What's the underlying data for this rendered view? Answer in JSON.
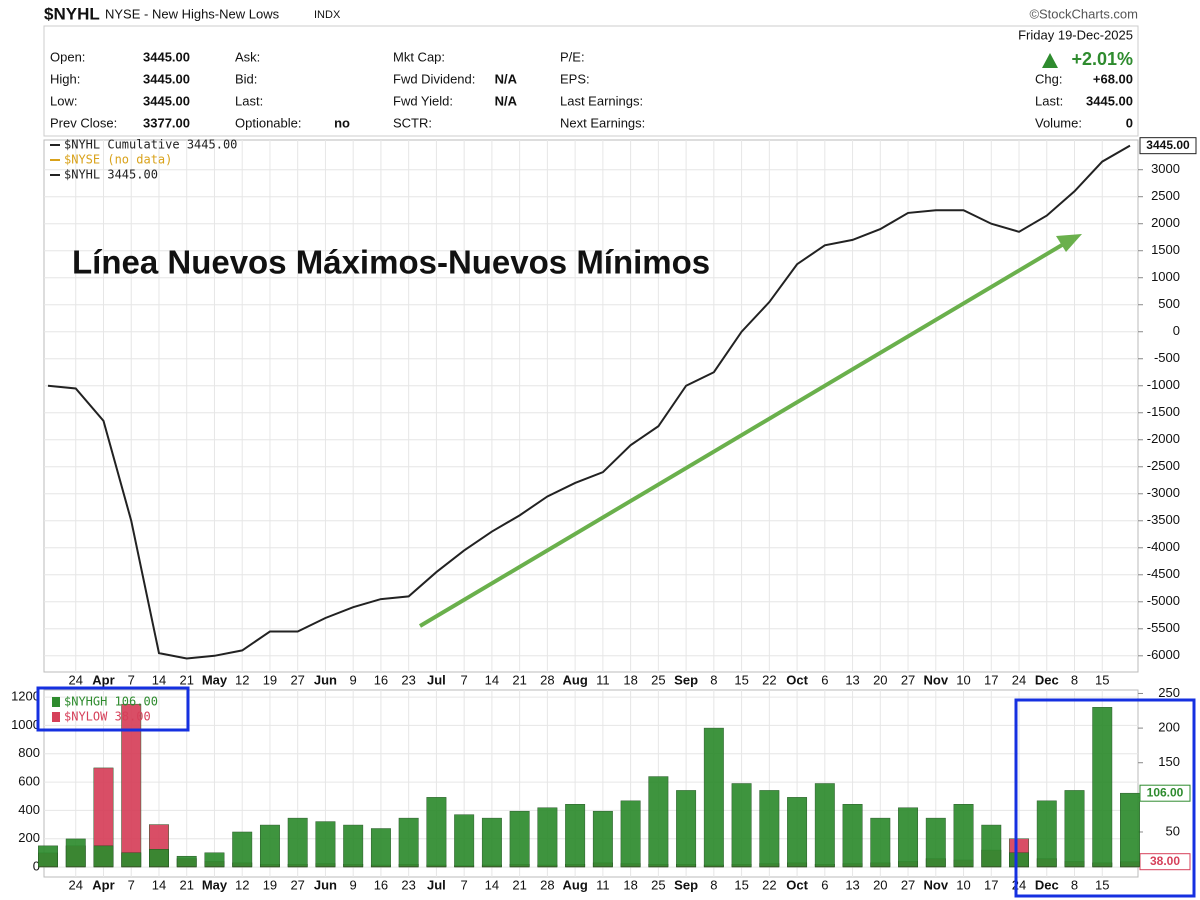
{
  "header": {
    "symbol": "$NYHL",
    "name": "NYSE - New Highs-New Lows",
    "exchange": "INDX",
    "source": "©StockCharts.com"
  },
  "info": {
    "columns": [
      [
        {
          "label": "Open:",
          "value": "3445.00"
        },
        {
          "label": "High:",
          "value": "3445.00"
        },
        {
          "label": "Low:",
          "value": "3445.00"
        },
        {
          "label": "Prev Close:",
          "value": "3377.00"
        }
      ],
      [
        {
          "label": "Ask:"
        },
        {
          "label": "Bid:"
        },
        {
          "label": "Last:"
        },
        {
          "label": "Optionable:",
          "value": "no"
        }
      ],
      [
        {
          "label": "Mkt Cap:"
        },
        {
          "label": "Fwd Dividend:",
          "value": "N/A"
        },
        {
          "label": "Fwd Yield:",
          "value": "N/A"
        },
        {
          "label": "SCTR:"
        }
      ],
      [
        {
          "label": "P/E:"
        },
        {
          "label": "EPS:"
        },
        {
          "label": "Last Earnings:"
        },
        {
          "label": "Next Earnings:"
        }
      ]
    ]
  },
  "quote": {
    "date": "Friday  19-Dec-2025",
    "change_pct": "+2.01%",
    "chg_label": "Chg:",
    "chg": "+68.00",
    "last_label": "Last:",
    "last": "3445.00",
    "volume_label": "Volume:",
    "volume": "0"
  },
  "chart_data": [
    {
      "type": "line",
      "annotation": "Línea Nuevos Máximos-Nuevos Mínimos",
      "categories": [
        null,
        "24",
        "Apr",
        "7",
        "14",
        "21",
        "May",
        "12",
        "19",
        "27",
        "Jun",
        "9",
        "16",
        "23",
        "Jul",
        "7",
        "14",
        "21",
        "28",
        "Aug",
        "11",
        "18",
        "25",
        "Sep",
        "8",
        "15",
        "22",
        "Oct",
        "6",
        "13",
        "20",
        "27",
        "Nov",
        "10",
        "17",
        "24",
        "Dec",
        "8",
        "15",
        null
      ],
      "series": [
        {
          "name": "$NYHL Cumulative 3445.00",
          "color": "#222222",
          "last_label": "3445.00",
          "values": [
            -1000,
            -1050,
            -1650,
            -3500,
            -5950,
            -6050,
            -6000,
            -5900,
            -5550,
            -5550,
            -5300,
            -5100,
            -4950,
            -4900,
            -4450,
            -4050,
            -3700,
            -3400,
            -3050,
            -2800,
            -2600,
            -2100,
            -1750,
            -1000,
            -750,
            0,
            550,
            1250,
            1600,
            1700,
            1900,
            2200,
            2250,
            2250,
            2000,
            1850,
            2150,
            2600,
            3150,
            3445
          ]
        }
      ],
      "legend_extra": [
        {
          "text": "$NYSE (no data)",
          "color": "#d9a21b"
        },
        {
          "text": "$NYHL 3445.00",
          "color": "#222222"
        }
      ],
      "ylim": [
        -6300,
        3550
      ],
      "yticks": [
        -6000,
        -5500,
        -5000,
        -4500,
        -4000,
        -3500,
        -3000,
        -2500,
        -2000,
        -1500,
        -1000,
        -500,
        0,
        500,
        1000,
        1500,
        2000,
        2500,
        3000
      ],
      "grid": true
    },
    {
      "type": "bar",
      "categories": [
        null,
        "24",
        "Apr",
        "7",
        "14",
        "21",
        "May",
        "12",
        "19",
        "27",
        "Jun",
        "9",
        "16",
        "23",
        "Jul",
        "7",
        "14",
        "21",
        "28",
        "Aug",
        "11",
        "18",
        "25",
        "Sep",
        "8",
        "15",
        "22",
        "Oct",
        "6",
        "13",
        "20",
        "27",
        "Nov",
        "10",
        "17",
        "24",
        "Dec",
        "8",
        "15",
        null
      ],
      "series": [
        {
          "name": "$NYLOW 38.00",
          "color": "#d6405a",
          "last_label": "38.00",
          "values": [
            100,
            150,
            700,
            1150,
            300,
            60,
            40,
            30,
            20,
            20,
            25,
            20,
            15,
            20,
            15,
            10,
            15,
            20,
            15,
            20,
            30,
            25,
            20,
            20,
            15,
            20,
            25,
            30,
            20,
            25,
            30,
            40,
            60,
            50,
            120,
            200,
            60,
            40,
            30,
            38
          ]
        },
        {
          "name": "$NYHGH 106.00",
          "color": "#2e8b2e",
          "axis": "y2",
          "last_label": "106.00",
          "values": [
            30,
            40,
            30,
            20,
            25,
            15,
            20,
            50,
            60,
            70,
            65,
            60,
            55,
            70,
            100,
            75,
            70,
            80,
            85,
            90,
            80,
            95,
            130,
            110,
            200,
            120,
            110,
            100,
            120,
            90,
            70,
            85,
            70,
            90,
            60,
            20,
            95,
            110,
            230,
            106
          ]
        }
      ],
      "ylim": [
        -70,
        1250
      ],
      "yticks": [
        0,
        200,
        400,
        600,
        800,
        1000,
        1200
      ],
      "y2lim": [
        -15,
        255
      ],
      "y2ticks": [
        50,
        100,
        150,
        200,
        250
      ],
      "grid": true
    }
  ]
}
